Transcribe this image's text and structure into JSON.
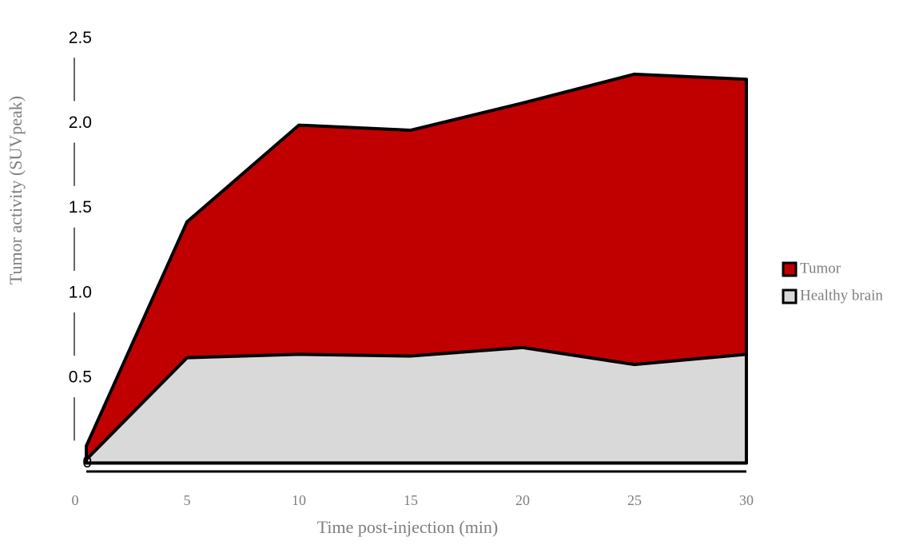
{
  "chart_data": {
    "type": "area",
    "x_label": "Time post-injection (min)",
    "y_label": "Tumor activity (SUVpeak)",
    "x": [
      0.5,
      5,
      10,
      15,
      20,
      25,
      30
    ],
    "series": [
      {
        "name": "Tumor",
        "color": "#c00000",
        "values": [
          0.1,
          1.42,
          1.99,
          1.96,
          2.12,
          2.29,
          2.26
        ]
      },
      {
        "name": "Healthy brain",
        "color": "#d9d9d9",
        "values": [
          0.02,
          0.62,
          0.64,
          0.63,
          0.68,
          0.58,
          0.64
        ]
      }
    ],
    "xlim": [
      0,
      30
    ],
    "xticks": [
      0,
      5,
      10,
      15,
      20,
      25,
      30
    ],
    "ylim": [
      -0.05,
      2.6
    ],
    "yticks": [
      0,
      0.5,
      {
        "value": 1,
        "label": "1.0"
      },
      1.5,
      {
        "value": 2,
        "label": "2.0"
      },
      2.5
    ],
    "legend": "right"
  }
}
